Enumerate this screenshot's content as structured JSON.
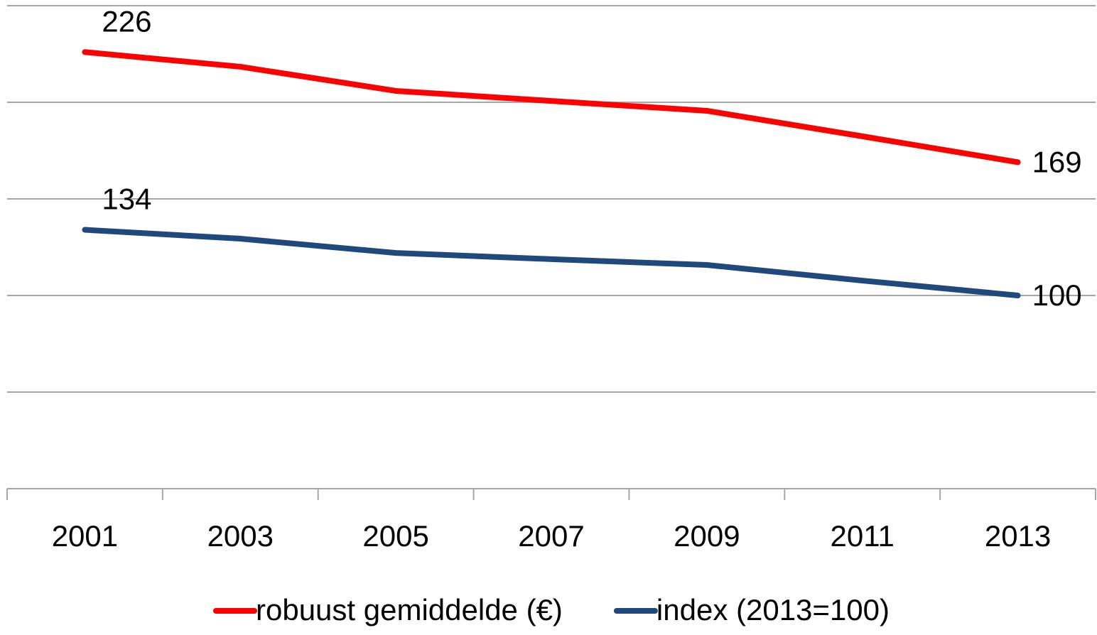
{
  "chart_data": {
    "type": "line",
    "categories": [
      "2001",
      "2003",
      "2005",
      "2007",
      "2009",
      "2011",
      "2013"
    ],
    "series": [
      {
        "name": "robuust gemiddelde (€)",
        "color": "#ff0000",
        "values": [
          226,
          218.4,
          205.9,
          200.7,
          195.6,
          182.4,
          169
        ],
        "value_labels": [
          "226",
          null,
          null,
          null,
          null,
          null,
          "169"
        ]
      },
      {
        "name": "index (2013=100)",
        "color": "#1f497d",
        "values": [
          134,
          129.4,
          122,
          118.8,
          115.8,
          107.7,
          100
        ],
        "value_labels": [
          "134",
          null,
          null,
          null,
          null,
          null,
          "100"
        ]
      }
    ],
    "ylim": [
      0,
      250
    ],
    "yticks": [
      0,
      50,
      100,
      150,
      200,
      250
    ],
    "grid": true,
    "legend": "bottom"
  }
}
